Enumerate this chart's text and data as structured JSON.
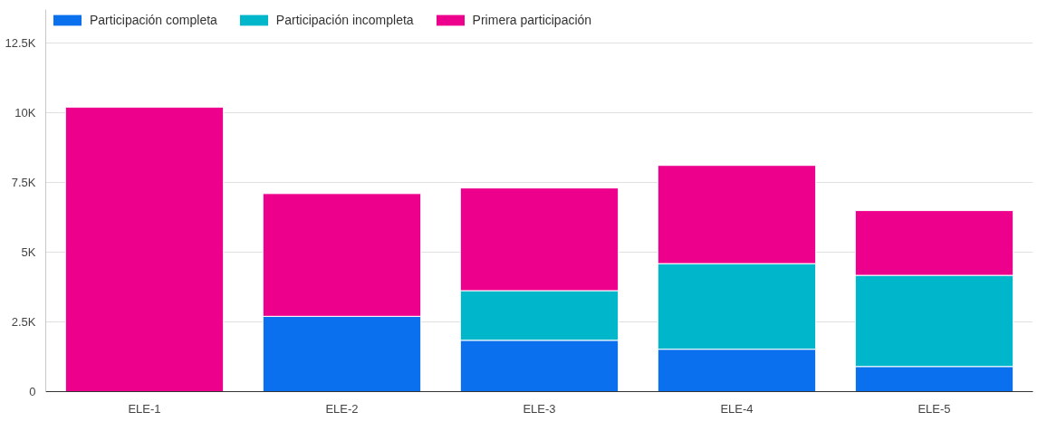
{
  "chart_data": {
    "type": "bar",
    "stacked": true,
    "categories": [
      "ELE-1",
      "ELE-2",
      "ELE-3",
      "ELE-4",
      "ELE-5"
    ],
    "series": [
      {
        "name": "Participación completa",
        "color": "#0b70ee",
        "values": [
          null,
          2700,
          1840,
          1520,
          900
        ]
      },
      {
        "name": "Participación incompleta",
        "color": "#00b6cb",
        "values": [
          null,
          null,
          1780,
          3070,
          3270
        ]
      },
      {
        "name": "Primera participación",
        "color": "#ec008c",
        "values": [
          10200,
          4400,
          3680,
          3520,
          2320
        ]
      }
    ],
    "ylim": [
      0,
      13700
    ],
    "yticks": [
      0,
      {
        "value": 2500,
        "label": "2.5K"
      },
      {
        "value": 5000,
        "label": "5K"
      },
      {
        "value": 7500,
        "label": "7.5K"
      },
      {
        "value": 10000,
        "label": "10K"
      },
      {
        "value": 12500,
        "label": "12.5K"
      }
    ],
    "grid": "y",
    "legend": "top left"
  }
}
